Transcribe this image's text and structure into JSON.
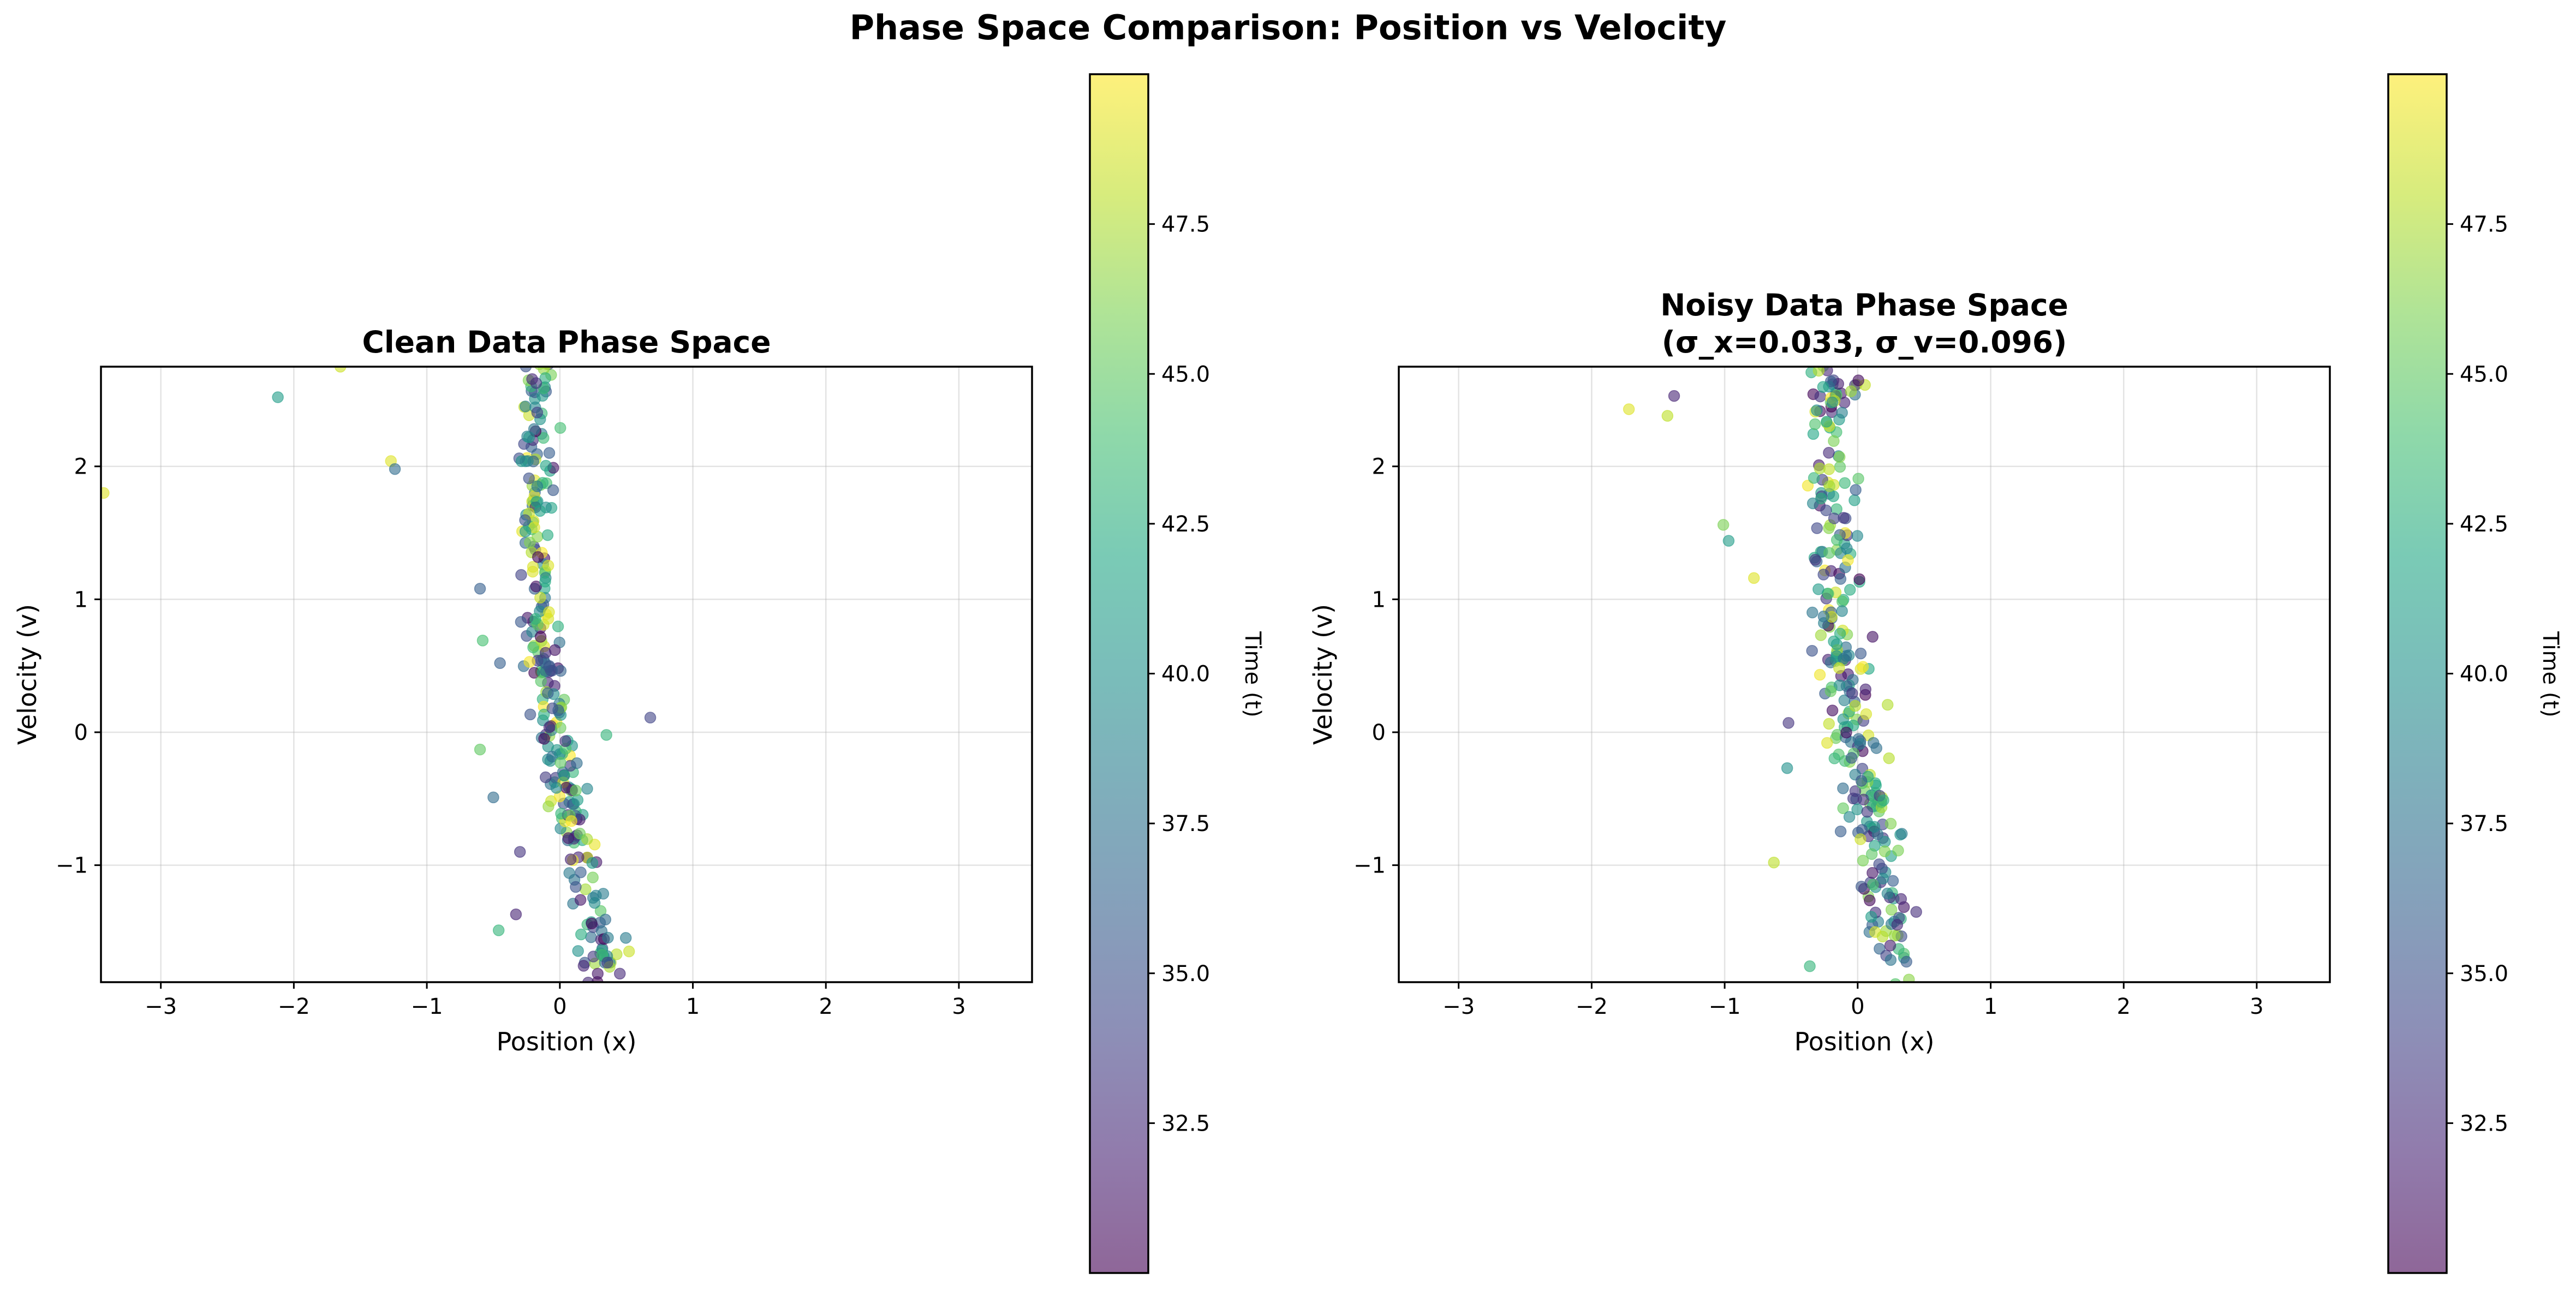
{
  "figure": {
    "suptitle": "Phase Space Comparison: Position vs Velocity"
  },
  "chart_data": [
    {
      "type": "scatter",
      "title": "Clean Data Phase Space",
      "xlabel": "Position (x)",
      "ylabel": "Velocity (v)",
      "xlim": [
        -3.45,
        3.55
      ],
      "ylim": [
        -1.88,
        2.75
      ],
      "xticks": [
        -3,
        -2,
        -1,
        0,
        1,
        2,
        3
      ],
      "xtick_labels": [
        "−3",
        "−2",
        "−1",
        "0",
        "1",
        "2",
        "3"
      ],
      "yticks": [
        -1,
        0,
        1,
        2
      ],
      "ytick_labels": [
        "−1",
        "0",
        "1",
        "2"
      ],
      "grid": true,
      "colorbar": {
        "label": "Time (t)",
        "range": [
          30,
          50
        ],
        "ticks": [
          32.5,
          35.0,
          37.5,
          40.0,
          42.5,
          45.0,
          47.5
        ],
        "tick_labels": [
          "32.5",
          "35.0",
          "37.5",
          "40.0",
          "42.5",
          "45.0",
          "47.5"
        ],
        "colormap": "viridis",
        "alpha": 0.6
      },
      "seed": 11,
      "n_points": 300,
      "outliers": [
        {
          "x": -2.12,
          "v": 2.52,
          "t": 41.0
        },
        {
          "x": -1.65,
          "v": 2.75,
          "t": 48.5
        },
        {
          "x": -1.27,
          "v": 2.04,
          "t": 49.0
        },
        {
          "x": -1.24,
          "v": 1.98,
          "t": 37.0
        },
        {
          "x": -3.43,
          "v": 1.8,
          "t": 49.0
        },
        {
          "x": -0.17,
          "v": 1.85,
          "t": 38.0
        },
        {
          "x": 0.68,
          "v": 0.11,
          "t": 34.0
        },
        {
          "x": 0.35,
          "v": -0.02,
          "t": 43.0
        },
        {
          "x": -0.58,
          "v": 0.69,
          "t": 44.0
        },
        {
          "x": -0.6,
          "v": -0.13,
          "t": 45.0
        },
        {
          "x": -0.5,
          "v": -0.49,
          "t": 37.0
        },
        {
          "x": -0.45,
          "v": 0.52,
          "t": 36.0
        },
        {
          "x": -0.46,
          "v": -1.49,
          "t": 43.0
        },
        {
          "x": -0.33,
          "v": -1.37,
          "t": 32.0
        },
        {
          "x": -0.3,
          "v": -0.9,
          "t": 33.0
        },
        {
          "x": -0.6,
          "v": 1.08,
          "t": 36.0
        }
      ]
    },
    {
      "type": "scatter",
      "title": "Noisy Data Phase Space",
      "subtitle": "(σ_x=0.033, σ_v=0.096)",
      "xlabel": "Position (x)",
      "ylabel": "Velocity (v)",
      "xlim": [
        -3.45,
        3.55
      ],
      "ylim": [
        -1.88,
        2.75
      ],
      "xticks": [
        -3,
        -2,
        -1,
        0,
        1,
        2,
        3
      ],
      "xtick_labels": [
        "−3",
        "−2",
        "−1",
        "0",
        "1",
        "2",
        "3"
      ],
      "yticks": [
        -1,
        0,
        1,
        2
      ],
      "ytick_labels": [
        "−1",
        "0",
        "1",
        "2"
      ],
      "grid": true,
      "colorbar": {
        "label": "Time (t)",
        "range": [
          30,
          50
        ],
        "ticks": [
          32.5,
          35.0,
          37.5,
          40.0,
          42.5,
          45.0,
          47.5
        ],
        "tick_labels": [
          "32.5",
          "35.0",
          "37.5",
          "40.0",
          "42.5",
          "45.0",
          "47.5"
        ],
        "colormap": "viridis",
        "alpha": 0.6
      },
      "seed": 29,
      "n_points": 300,
      "outliers": [
        {
          "x": -1.72,
          "v": 2.43,
          "t": 49.0
        },
        {
          "x": -1.43,
          "v": 2.38,
          "t": 48.0
        },
        {
          "x": -1.01,
          "v": 1.56,
          "t": 46.0
        },
        {
          "x": -0.97,
          "v": 1.44,
          "t": 41.0
        },
        {
          "x": -0.78,
          "v": 1.16,
          "t": 49.0
        },
        {
          "x": -0.52,
          "v": 0.07,
          "t": 33.0
        },
        {
          "x": -0.53,
          "v": -0.27,
          "t": 40.0
        },
        {
          "x": -0.63,
          "v": -0.98,
          "t": 48.0
        },
        {
          "x": -0.36,
          "v": -1.76,
          "t": 43.0
        },
        {
          "x": -0.23,
          "v": -0.08,
          "t": 49.0
        },
        {
          "x": -1.38,
          "v": 2.53,
          "t": 32.0
        }
      ]
    }
  ]
}
